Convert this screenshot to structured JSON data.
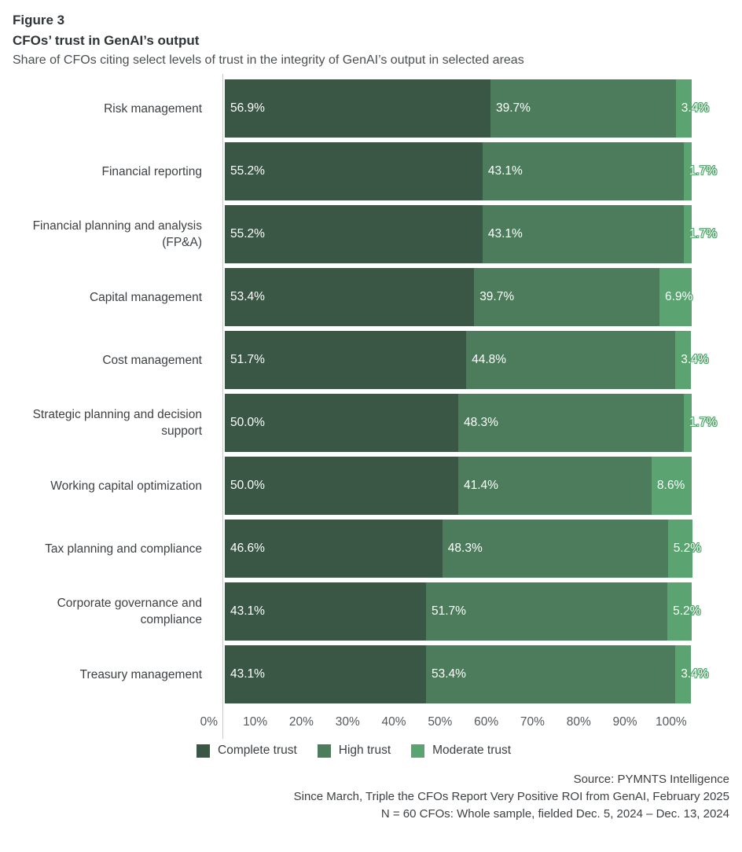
{
  "header": {
    "figure_label": "Figure 3",
    "title": "CFOs’ trust in GenAI’s output",
    "subtitle": "Share of CFOs citing select levels of trust in the integrity of GenAI’s output in selected areas"
  },
  "chart_data": {
    "type": "bar",
    "orientation": "horizontal",
    "stacked": true,
    "title": "CFOs’ trust in GenAI’s output",
    "categories": [
      "Risk management",
      "Financial reporting",
      "Financial planning and analysis (FP&A)",
      "Capital management",
      "Cost management",
      "Strategic planning and decision support",
      "Working capital optimization",
      "Tax planning and compliance",
      "Corporate governance and compliance",
      "Treasury management"
    ],
    "series": [
      {
        "key": "complete-trust",
        "name": "Complete trust",
        "values": [
          56.9,
          55.2,
          55.2,
          53.4,
          51.7,
          50.0,
          50.0,
          46.6,
          43.1,
          43.1
        ]
      },
      {
        "key": "high-trust",
        "name": "High trust",
        "values": [
          39.7,
          43.1,
          43.1,
          39.7,
          44.8,
          48.3,
          41.4,
          48.3,
          51.7,
          53.4
        ]
      },
      {
        "key": "moderate-trust",
        "name": "Moderate trust",
        "values": [
          3.4,
          1.7,
          1.7,
          6.9,
          3.4,
          1.7,
          8.6,
          5.2,
          5.2,
          3.4
        ]
      }
    ],
    "colors": [
      "#3a5745",
      "#4d7c5c",
      "#5ba471"
    ],
    "value_suffix": "%",
    "x_ticks": [
      "0%",
      "10%",
      "20%",
      "30%",
      "40%",
      "50%",
      "60%",
      "70%",
      "80%",
      "90%",
      "100%"
    ],
    "xlim": [
      0,
      100
    ],
    "grid": false,
    "legend_position": "bottom"
  },
  "footer": {
    "source": "Source: PYMNTS Intelligence",
    "report": "Since March, Triple the CFOs Report Very Positive ROI from GenAI, February 2025",
    "sample": "N = 60 CFOs: Whole sample, fielded Dec. 5, 2024 – Dec. 13, 2024"
  }
}
